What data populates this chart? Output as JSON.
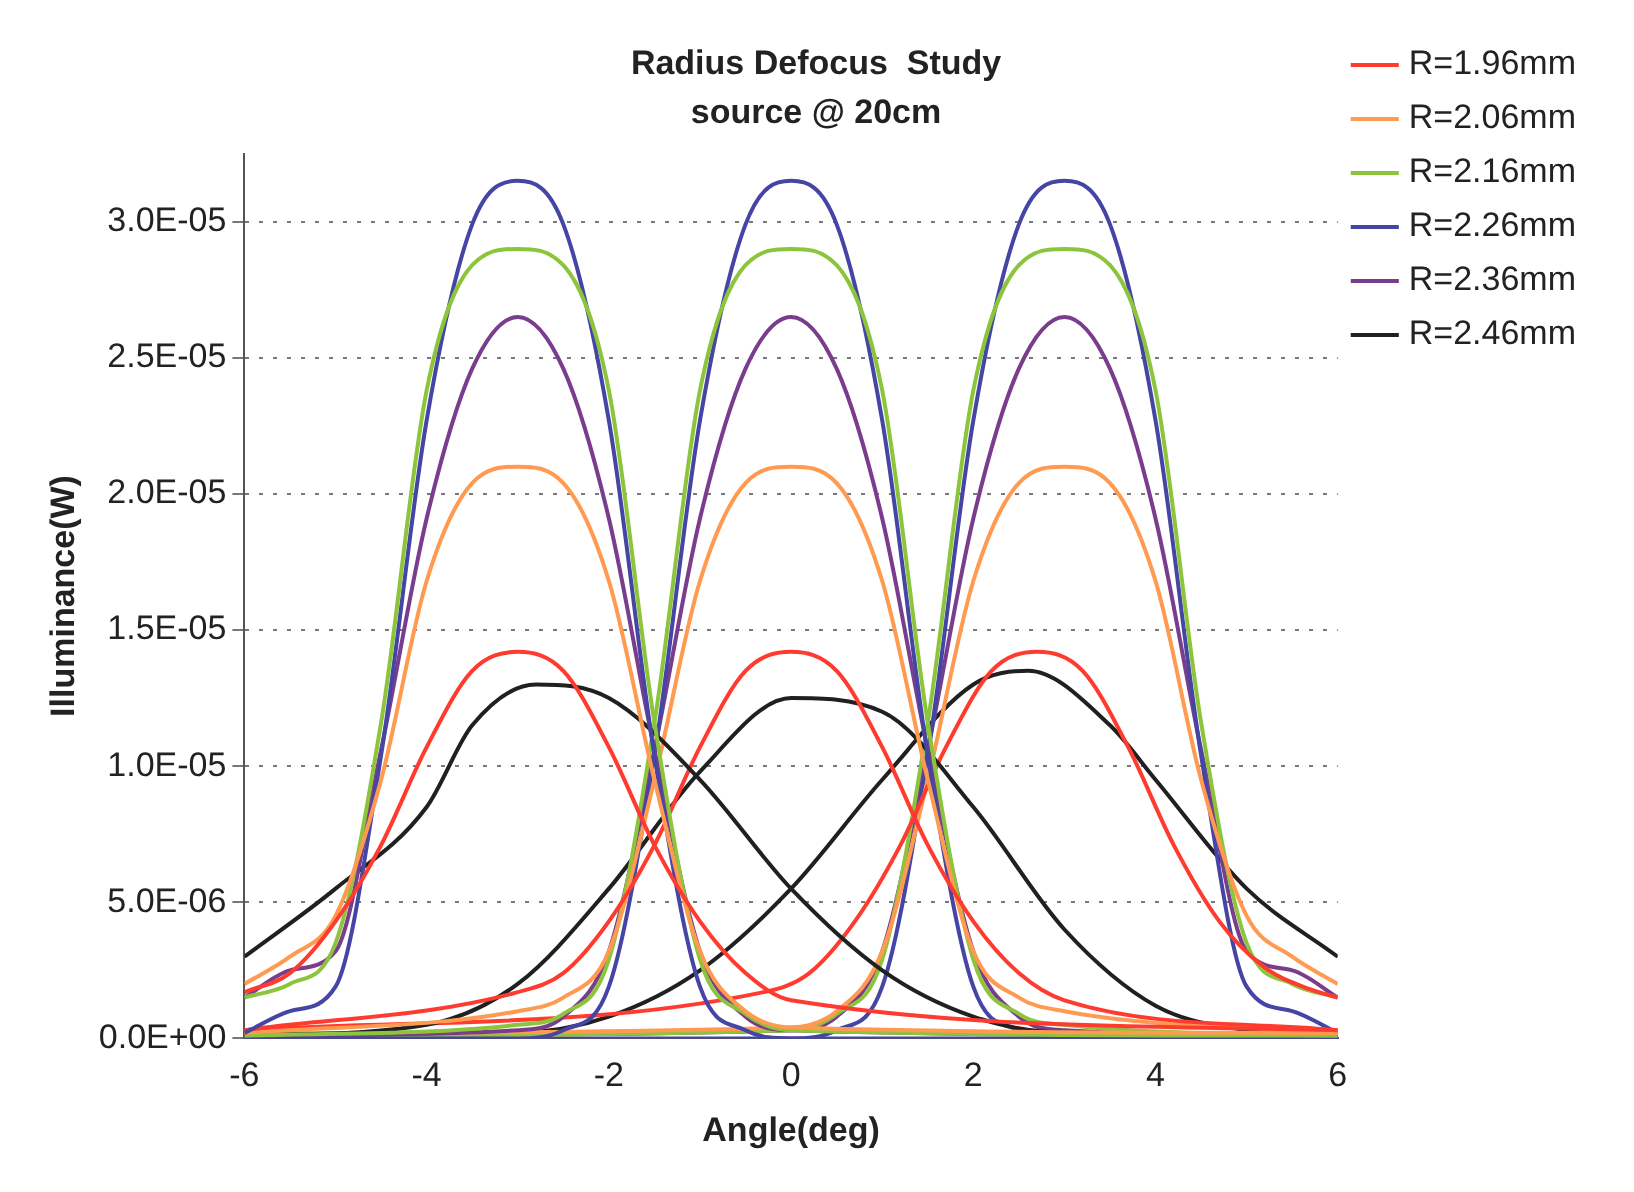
{
  "chart_data": {
    "type": "line",
    "title": "Radius Defocus  Study",
    "subtitle": "source @ 20cm",
    "xlabel": "Angle(deg)",
    "ylabel": "Illuminance(W)",
    "xlim": [
      -6,
      6
    ],
    "xticks": [
      -6,
      -4,
      -2,
      0,
      2,
      4,
      6
    ],
    "ylim": [
      0,
      3.25e-05
    ],
    "yticks": [
      {
        "value": 0,
        "label": "0.0E+00"
      },
      {
        "value": 5e-06,
        "label": "5.0E-06"
      },
      {
        "value": 1e-05,
        "label": "1.0E-05"
      },
      {
        "value": 1.5e-05,
        "label": "1.5E-05"
      },
      {
        "value": 2e-05,
        "label": "2.0E-05"
      },
      {
        "value": 2.5e-05,
        "label": "2.5E-05"
      },
      {
        "value": 3e-05,
        "label": "3.0E-05"
      }
    ],
    "grid": "y",
    "legend": "top right",
    "marker": "none",
    "line_style": "solid",
    "series": [
      {
        "name": "R=1.96mm",
        "color": "#ff3b2f",
        "x": [
          -6,
          -5.5,
          -5,
          -4.5,
          -4,
          -3.5,
          -3,
          -2.5,
          -2,
          -1.5,
          -1,
          -0.5,
          0,
          6
        ],
        "values": [
          1.7e-06,
          2.4e-06,
          4.3e-06,
          7.1e-06,
          1.07e-05,
          1.35e-05,
          1.42e-05,
          1.35e-05,
          1.07e-05,
          7.1e-06,
          4.3e-06,
          2.4e-06,
          1.4e-06,
          3e-07
        ]
      },
      {
        "name": "R=2.06mm",
        "color": "#ff9a50",
        "x": [
          -6,
          -5.5,
          -5,
          -4.5,
          -4,
          -3.5,
          -3,
          -2.5,
          -2,
          -1.5,
          -1,
          -0.5,
          0,
          6
        ],
        "values": [
          2e-06,
          3e-06,
          4.5e-06,
          9.5e-06,
          1.68e-05,
          2.04e-05,
          2.1e-05,
          2.04e-05,
          1.68e-05,
          9.5e-06,
          3.2e-06,
          1e-06,
          4e-07,
          2e-07
        ]
      },
      {
        "name": "R=2.16mm",
        "color": "#8cc43c",
        "x": [
          -6,
          -5.5,
          -5,
          -4.5,
          -4,
          -3.5,
          -3,
          -2.5,
          -2,
          -1.5,
          -1,
          -0.5,
          0,
          6
        ],
        "values": [
          1.5e-06,
          2e-06,
          3.5e-06,
          1.16e-05,
          2.38e-05,
          2.84e-05,
          2.9e-05,
          2.84e-05,
          2.38e-05,
          1.16e-05,
          2.9e-06,
          9e-07,
          3e-07,
          1e-07
        ]
      },
      {
        "name": "R=2.26mm",
        "color": "#4545a5",
        "x": [
          -6,
          -5.5,
          -5,
          -4.5,
          -4,
          -3.5,
          -3,
          -2.5,
          -2,
          -1.5,
          -1,
          -0.5,
          0,
          6
        ],
        "values": [
          2e-07,
          1e-06,
          1.9e-06,
          1.04e-05,
          2.27e-05,
          2.99e-05,
          3.15e-05,
          2.99e-05,
          2.27e-05,
          1.04e-05,
          1.9e-06,
          3e-07,
          0,
          0
        ]
      },
      {
        "name": "R=2.36mm",
        "color": "#7a3c8c",
        "x": [
          -6,
          -5.5,
          -5,
          -4.5,
          -4,
          -3.5,
          -3,
          -2.5,
          -2,
          -1.5,
          -1,
          -0.5,
          0,
          6
        ],
        "values": [
          1.5e-06,
          2.5e-06,
          3.2e-06,
          1.06e-05,
          1.91e-05,
          2.46e-05,
          2.65e-05,
          2.46e-05,
          1.91e-05,
          1.06e-05,
          3.2e-06,
          8e-07,
          3e-07,
          1e-07
        ]
      },
      {
        "name": "R=2.46mm",
        "color": "#202020",
        "x": [
          -6,
          -5,
          -4,
          -3.5,
          -2.8,
          -2,
          -1,
          0,
          1,
          2,
          3,
          6
        ],
        "values": [
          3e-06,
          5.5e-06,
          8.5e-06,
          1.15e-05,
          1.3e-05,
          1.25e-05,
          9.5e-06,
          5.5e-06,
          2.5e-06,
          8e-07,
          2e-07,
          1e-07
        ]
      },
      {
        "color": "#ff3b2f",
        "x": [
          -6,
          -3,
          -2.5,
          -2,
          -1.5,
          -1,
          -0.5,
          0,
          0.5,
          1,
          1.5,
          2,
          2.5,
          3,
          6
        ],
        "values": [
          3e-07,
          1.7e-06,
          2.4e-06,
          4.3e-06,
          7.1e-06,
          1.07e-05,
          1.35e-05,
          1.42e-05,
          1.35e-05,
          1.07e-05,
          7.1e-06,
          4.3e-06,
          2.4e-06,
          1.4e-06,
          3e-07
        ]
      },
      {
        "color": "#ff9a50",
        "x": [
          -6,
          -3,
          -2.5,
          -2,
          -1.5,
          -1,
          -0.5,
          0,
          0.5,
          1,
          1.5,
          2,
          2.5,
          3,
          6
        ],
        "values": [
          2e-07,
          1e-06,
          1.5e-06,
          3.2e-06,
          9.5e-06,
          1.68e-05,
          2.04e-05,
          2.1e-05,
          2.04e-05,
          1.68e-05,
          9.5e-06,
          3.2e-06,
          1.5e-06,
          1e-06,
          2e-07
        ]
      },
      {
        "color": "#8cc43c",
        "x": [
          -6,
          -3,
          -2.5,
          -2,
          -1.5,
          -1,
          -0.5,
          0,
          0.5,
          1,
          1.5,
          2,
          2.5,
          3,
          6
        ],
        "values": [
          1e-07,
          5e-07,
          9e-07,
          2.9e-06,
          1.16e-05,
          2.38e-05,
          2.84e-05,
          2.9e-05,
          2.84e-05,
          2.38e-05,
          1.16e-05,
          2.9e-06,
          9e-07,
          5e-07,
          1e-07
        ]
      },
      {
        "color": "#4545a5",
        "x": [
          -6,
          -3,
          -2.5,
          -2,
          -1.5,
          -1,
          -0.5,
          0,
          0.5,
          1,
          1.5,
          2,
          2.5,
          3,
          6
        ],
        "values": [
          0,
          0,
          3e-07,
          1.9e-06,
          1.04e-05,
          2.27e-05,
          2.99e-05,
          3.15e-05,
          2.99e-05,
          2.27e-05,
          1.04e-05,
          1.9e-06,
          3e-07,
          0,
          0
        ]
      },
      {
        "color": "#7a3c8c",
        "x": [
          -6,
          -3,
          -2.5,
          -2,
          -1.5,
          -1,
          -0.5,
          0,
          0.5,
          1,
          1.5,
          2,
          2.5,
          3,
          6
        ],
        "values": [
          1e-07,
          3e-07,
          8e-07,
          3.2e-06,
          1.06e-05,
          1.91e-05,
          2.46e-05,
          2.65e-05,
          2.46e-05,
          1.91e-05,
          1.06e-05,
          3.2e-06,
          8e-07,
          3e-07,
          1e-07
        ]
      },
      {
        "color": "#202020",
        "x": [
          -6,
          -4,
          -3,
          -2,
          -1,
          0,
          1,
          2,
          3,
          4,
          5,
          6
        ],
        "values": [
          1e-07,
          5e-07,
          2e-06,
          5.5e-06,
          9.8e-06,
          1.25e-05,
          1.2e-05,
          8.5e-06,
          4e-06,
          1.2e-06,
          3e-07,
          1e-07
        ]
      },
      {
        "color": "#ff3b2f",
        "x": [
          -6,
          -0.3,
          0.2,
          0.7,
          1.2,
          1.7,
          2.2,
          2.7,
          3.2,
          3.7,
          4.2,
          4.7,
          5.2,
          5.7,
          6
        ],
        "values": [
          3e-07,
          1.7e-06,
          2.4e-06,
          4.3e-06,
          7.1e-06,
          1.07e-05,
          1.35e-05,
          1.42e-05,
          1.35e-05,
          1.07e-05,
          7.1e-06,
          4.3e-06,
          2.6e-06,
          1.8e-06,
          1.5e-06
        ]
      },
      {
        "color": "#ff9a50",
        "x": [
          -6,
          0,
          0.5,
          1,
          1.5,
          2,
          2.5,
          3,
          3.5,
          4,
          4.5,
          5,
          5.5,
          6
        ],
        "values": [
          2e-07,
          4e-07,
          1e-06,
          3.2e-06,
          9.5e-06,
          1.68e-05,
          2.04e-05,
          2.1e-05,
          2.04e-05,
          1.68e-05,
          9.5e-06,
          4.5e-06,
          3e-06,
          2e-06
        ]
      },
      {
        "color": "#8cc43c",
        "x": [
          -6,
          0,
          0.5,
          1,
          1.5,
          2,
          2.5,
          3,
          3.5,
          4,
          4.5,
          5,
          5.5,
          6
        ],
        "values": [
          1e-07,
          3e-07,
          9e-07,
          2.9e-06,
          1.16e-05,
          2.38e-05,
          2.84e-05,
          2.9e-05,
          2.84e-05,
          2.38e-05,
          1.16e-05,
          3.5e-06,
          2e-06,
          1.5e-06
        ]
      },
      {
        "color": "#4545a5",
        "x": [
          -6,
          0,
          0.5,
          1,
          1.5,
          2,
          2.5,
          3,
          3.5,
          4,
          4.5,
          5,
          5.5,
          6
        ],
        "values": [
          0,
          0,
          3e-07,
          1.9e-06,
          1.04e-05,
          2.27e-05,
          2.99e-05,
          3.15e-05,
          2.99e-05,
          2.27e-05,
          1.04e-05,
          1.9e-06,
          1e-06,
          2e-07
        ]
      },
      {
        "color": "#7a3c8c",
        "x": [
          -6,
          0,
          0.5,
          1,
          1.5,
          2,
          2.5,
          3,
          3.5,
          4,
          4.5,
          5,
          5.5,
          6
        ],
        "values": [
          1e-07,
          3e-07,
          8e-07,
          3.2e-06,
          1.06e-05,
          1.91e-05,
          2.46e-05,
          2.65e-05,
          2.46e-05,
          1.91e-05,
          1.06e-05,
          3.2e-06,
          2.5e-06,
          1.5e-06
        ]
      },
      {
        "color": "#202020",
        "x": [
          -6,
          -3,
          -2,
          -1,
          0,
          1,
          2,
          2.6,
          3.5,
          4,
          5,
          6
        ],
        "values": [
          1e-07,
          2e-07,
          8e-07,
          2.5e-06,
          5.5e-06,
          9.5e-06,
          1.3e-05,
          1.35e-05,
          1.15e-05,
          9.5e-06,
          5.5e-06,
          3e-06
        ]
      }
    ]
  }
}
